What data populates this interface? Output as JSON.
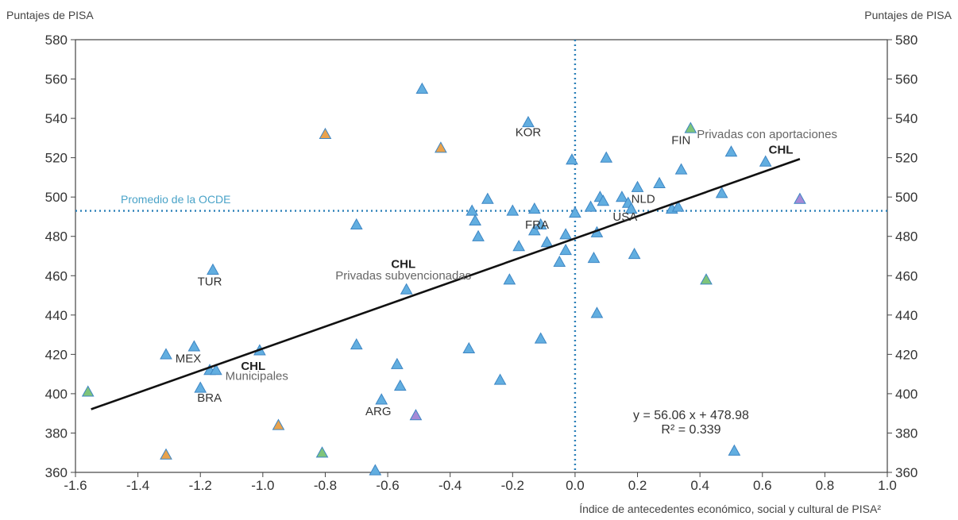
{
  "chart_data": {
    "type": "scatter",
    "ylabel_left": "Puntajes de PISA",
    "ylabel_right": "Puntajes de PISA",
    "xlabel": "Índice de antecedentes económico, social y cultural de PISA²",
    "xlim": [
      -1.6,
      1.0
    ],
    "ylim": [
      360,
      580
    ],
    "x_ticks": [
      "-1.6",
      "-1.4",
      "-1.2",
      "-1.0",
      "-0.8",
      "-0.6",
      "-0.4",
      "-0.2",
      "0.0",
      "0.2",
      "0.4",
      "0.6",
      "0.8",
      "1.0"
    ],
    "x_tick_values": [
      -1.6,
      -1.4,
      -1.2,
      -1.0,
      -0.8,
      -0.6,
      -0.4,
      -0.2,
      0.0,
      0.2,
      0.4,
      0.6,
      0.8,
      1.0
    ],
    "y_ticks": [
      "360",
      "380",
      "400",
      "420",
      "440",
      "460",
      "480",
      "500",
      "520",
      "540",
      "560",
      "580"
    ],
    "y_tick_values": [
      360,
      380,
      400,
      420,
      440,
      460,
      480,
      500,
      520,
      540,
      560,
      580
    ],
    "grid": false,
    "oecd_average": {
      "x": 0.0,
      "y": 493,
      "label": "Promedio de la OCDE"
    },
    "regression": {
      "slope": 56.06,
      "intercept": 478.98,
      "x_range": [
        -1.55,
        0.72
      ],
      "equation": "y = 56.06 x + 478.98",
      "r2": "R² = 0.339"
    },
    "colors": {
      "point": "#62aee0",
      "point_edge": "#3d86c4",
      "highlight": "#1f4f86",
      "green_point": "#7fc47a",
      "orange_point": "#e9a24c",
      "purple_point": "#a58ad6",
      "line": "#111111",
      "dotted": "#2a7fb8"
    },
    "points": [
      {
        "x": -1.56,
        "y": 401,
        "color": "green"
      },
      {
        "x": -1.31,
        "y": 420,
        "color": "blue"
      },
      {
        "x": -1.31,
        "y": 369,
        "color": "orange"
      },
      {
        "x": -1.22,
        "y": 424,
        "color": "blue"
      },
      {
        "x": -1.2,
        "y": 403,
        "color": "blue"
      },
      {
        "x": -1.17,
        "y": 412,
        "color": "blue"
      },
      {
        "x": -1.15,
        "y": 412,
        "color": "blue"
      },
      {
        "x": -1.16,
        "y": 463,
        "color": "blue"
      },
      {
        "x": -1.01,
        "y": 422,
        "color": "blue"
      },
      {
        "x": -0.95,
        "y": 384,
        "color": "orange"
      },
      {
        "x": -0.81,
        "y": 370,
        "color": "green"
      },
      {
        "x": -0.8,
        "y": 532,
        "color": "orange"
      },
      {
        "x": -0.7,
        "y": 486,
        "color": "blue"
      },
      {
        "x": -0.7,
        "y": 425,
        "color": "blue"
      },
      {
        "x": -0.64,
        "y": 361,
        "color": "blue"
      },
      {
        "x": -0.62,
        "y": 397,
        "color": "blue"
      },
      {
        "x": -0.57,
        "y": 415,
        "color": "blue"
      },
      {
        "x": -0.56,
        "y": 404,
        "color": "blue"
      },
      {
        "x": -0.54,
        "y": 453,
        "color": "blue"
      },
      {
        "x": -0.51,
        "y": 389,
        "color": "purple"
      },
      {
        "x": -0.49,
        "y": 555,
        "color": "blue"
      },
      {
        "x": -0.43,
        "y": 525,
        "color": "orange"
      },
      {
        "x": -0.34,
        "y": 423,
        "color": "blue"
      },
      {
        "x": -0.33,
        "y": 493,
        "color": "blue"
      },
      {
        "x": -0.32,
        "y": 488,
        "color": "blue"
      },
      {
        "x": -0.31,
        "y": 480,
        "color": "blue"
      },
      {
        "x": -0.28,
        "y": 499,
        "color": "blue"
      },
      {
        "x": -0.24,
        "y": 407,
        "color": "blue"
      },
      {
        "x": -0.21,
        "y": 458,
        "color": "blue"
      },
      {
        "x": -0.2,
        "y": 493,
        "color": "blue"
      },
      {
        "x": -0.18,
        "y": 475,
        "color": "blue"
      },
      {
        "x": -0.15,
        "y": 538,
        "color": "blue"
      },
      {
        "x": -0.13,
        "y": 494,
        "color": "blue"
      },
      {
        "x": -0.13,
        "y": 483,
        "color": "blue"
      },
      {
        "x": -0.11,
        "y": 486,
        "color": "blue"
      },
      {
        "x": -0.11,
        "y": 428,
        "color": "blue"
      },
      {
        "x": -0.09,
        "y": 477,
        "color": "blue"
      },
      {
        "x": -0.05,
        "y": 467,
        "color": "blue"
      },
      {
        "x": -0.03,
        "y": 473,
        "color": "blue"
      },
      {
        "x": -0.03,
        "y": 481,
        "color": "blue"
      },
      {
        "x": -0.01,
        "y": 519,
        "color": "blue"
      },
      {
        "x": 0.0,
        "y": 492,
        "color": "blue"
      },
      {
        "x": 0.05,
        "y": 495,
        "color": "blue"
      },
      {
        "x": 0.06,
        "y": 469,
        "color": "blue"
      },
      {
        "x": 0.07,
        "y": 482,
        "color": "blue"
      },
      {
        "x": 0.07,
        "y": 441,
        "color": "blue"
      },
      {
        "x": 0.08,
        "y": 500,
        "color": "blue"
      },
      {
        "x": 0.09,
        "y": 498,
        "color": "blue"
      },
      {
        "x": 0.1,
        "y": 520,
        "color": "blue"
      },
      {
        "x": 0.15,
        "y": 500,
        "color": "blue"
      },
      {
        "x": 0.17,
        "y": 497,
        "color": "blue"
      },
      {
        "x": 0.18,
        "y": 494,
        "color": "blue"
      },
      {
        "x": 0.19,
        "y": 471,
        "color": "blue"
      },
      {
        "x": 0.2,
        "y": 505,
        "color": "blue"
      },
      {
        "x": 0.27,
        "y": 507,
        "color": "blue"
      },
      {
        "x": 0.31,
        "y": 494,
        "color": "blue"
      },
      {
        "x": 0.33,
        "y": 495,
        "color": "blue"
      },
      {
        "x": 0.34,
        "y": 514,
        "color": "blue"
      },
      {
        "x": 0.37,
        "y": 535,
        "color": "green"
      },
      {
        "x": 0.42,
        "y": 458,
        "color": "green"
      },
      {
        "x": 0.47,
        "y": 502,
        "color": "blue"
      },
      {
        "x": 0.5,
        "y": 523,
        "color": "blue"
      },
      {
        "x": 0.51,
        "y": 371,
        "color": "blue"
      },
      {
        "x": 0.61,
        "y": 518,
        "color": "blue"
      },
      {
        "x": 0.72,
        "y": 499,
        "color": "purple"
      }
    ],
    "labels": [
      {
        "text": "KOR",
        "x": -0.15,
        "y": 531,
        "style": "normal",
        "anchor": "middle"
      },
      {
        "text": "FIN",
        "x": 0.37,
        "y": 527,
        "style": "normal",
        "anchor": "end"
      },
      {
        "text": "Privadas con aportaciones",
        "x": 0.39,
        "y": 530,
        "style": "light",
        "anchor": "start"
      },
      {
        "text": "CHL",
        "x": 0.62,
        "y": 522,
        "style": "bold",
        "anchor": "start"
      },
      {
        "text": "NLD",
        "x": 0.18,
        "y": 497,
        "style": "normal",
        "anchor": "start"
      },
      {
        "text": "USA",
        "x": 0.16,
        "y": 488,
        "style": "normal",
        "anchor": "middle"
      },
      {
        "text": "FRA",
        "x": -0.16,
        "y": 484,
        "style": "normal",
        "anchor": "start"
      },
      {
        "text": "CHL",
        "x": -0.55,
        "y": 464,
        "style": "bold",
        "anchor": "middle"
      },
      {
        "text": "Privadas subvencionadas",
        "x": -0.55,
        "y": 458,
        "style": "light",
        "anchor": "middle"
      },
      {
        "text": "TUR",
        "x": -1.17,
        "y": 455,
        "style": "normal",
        "anchor": "middle"
      },
      {
        "text": "MEX",
        "x": -1.28,
        "y": 416,
        "style": "normal",
        "anchor": "start"
      },
      {
        "text": "CHL",
        "x": -1.07,
        "y": 412,
        "style": "bold",
        "anchor": "start"
      },
      {
        "text": "Municipales",
        "x": -1.12,
        "y": 407,
        "style": "light",
        "anchor": "start"
      },
      {
        "text": "BRA",
        "x": -1.21,
        "y": 396,
        "style": "normal",
        "anchor": "start"
      },
      {
        "text": "ARG",
        "x": -0.63,
        "y": 389,
        "style": "normal",
        "anchor": "middle"
      }
    ]
  }
}
